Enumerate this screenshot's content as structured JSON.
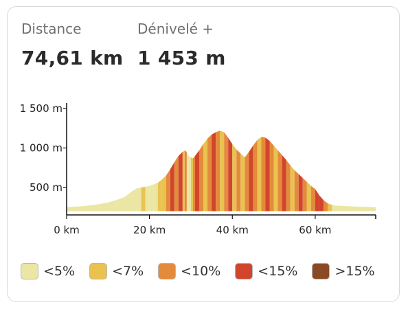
{
  "stats": {
    "distance_label": "Distance",
    "distance_value": "74,61 km",
    "elevation_label": "Dénivelé +",
    "elevation_value": "1 453 m"
  },
  "legend": [
    {
      "label": "<5%",
      "color": "#ebe6a3"
    },
    {
      "label": "<7%",
      "color": "#e9c250"
    },
    {
      "label": "<10%",
      "color": "#e48a3b"
    },
    {
      "label": "<15%",
      "color": "#d2452d"
    },
    {
      "label": ">15%",
      "color": "#8b4a26"
    }
  ],
  "chart_data": {
    "type": "area",
    "title": "",
    "xlabel": "",
    "ylabel": "",
    "x_unit": "km",
    "y_unit": "m",
    "xlim": [
      0,
      74.61
    ],
    "ylim": [
      200,
      1550
    ],
    "x_ticks": [
      0,
      20,
      40,
      60
    ],
    "x_tick_labels": [
      "0 km",
      "20 km",
      "40 km",
      "60 km"
    ],
    "y_ticks": [
      500,
      1000,
      1500
    ],
    "y_tick_labels": [
      "500 m",
      "1 000 m",
      "1 500 m"
    ],
    "series": [
      {
        "x": [
          0,
          3,
          6,
          8,
          10,
          12,
          14,
          15,
          16,
          17,
          18,
          19,
          20,
          21,
          22,
          23,
          24,
          25,
          26,
          27,
          28,
          28.5,
          29,
          29.5,
          30,
          30.5,
          31,
          32,
          33,
          34,
          35,
          36,
          37,
          38,
          39,
          40,
          41,
          42,
          43,
          44,
          45,
          46,
          47,
          48,
          49,
          50,
          51,
          52,
          53,
          54,
          55,
          56,
          57,
          58,
          59,
          60,
          61,
          62,
          63,
          64,
          65,
          67,
          70,
          72,
          74.61
        ],
        "y": [
          250,
          260,
          275,
          290,
          310,
          340,
          380,
          420,
          460,
          490,
          500,
          510,
          520,
          540,
          560,
          600,
          650,
          730,
          820,
          900,
          950,
          970,
          950,
          900,
          880,
          870,
          900,
          970,
          1050,
          1120,
          1170,
          1200,
          1220,
          1200,
          1130,
          1050,
          980,
          930,
          880,
          950,
          1030,
          1100,
          1140,
          1130,
          1090,
          1030,
          970,
          910,
          850,
          780,
          720,
          670,
          620,
          570,
          520,
          480,
          400,
          340,
          300,
          280,
          270,
          265,
          258,
          255,
          250
        ],
        "slope_class": [
          "<5%",
          "<5%",
          "<5%",
          "<5%",
          "<5%",
          "<5%",
          "<5%",
          "<5%",
          "<5%",
          "<5%",
          "<7%",
          "<5%",
          "<5%",
          "<5%",
          "<7%",
          "<7%",
          "<10%",
          "<15%",
          "<10%",
          "<15%",
          "<7%",
          "<10%",
          "<5%",
          "<5%",
          "<7%",
          "<10%",
          "<15%",
          "<10%",
          "<7%",
          "<10%",
          "<15%",
          "<10%",
          "<7%",
          "<10%",
          "<15%",
          "<7%",
          "<10%",
          "<7%",
          "<10%",
          "<15%",
          "<10%",
          "<7%",
          "<10%",
          "<15%",
          "<10%",
          "<7%",
          "<10%",
          "<15%",
          "<10%",
          "<7%",
          "<10%",
          "<15%",
          "<10%",
          "<7%",
          "<10%",
          "<15%",
          "<15%",
          "<10%",
          "<7%",
          "<5%",
          "<5%",
          "<5%",
          "<5%",
          "<5%",
          "<5%"
        ]
      }
    ],
    "grid": false,
    "legend_position": "bottom"
  }
}
